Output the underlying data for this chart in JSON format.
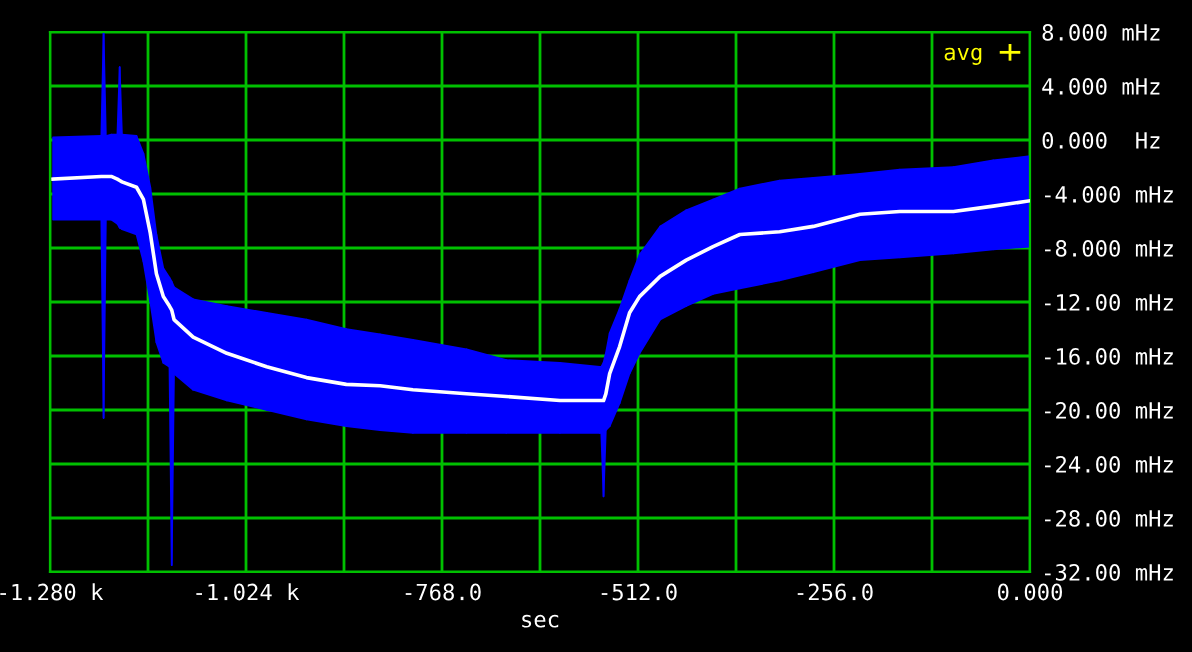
{
  "chart_data": {
    "type": "line",
    "xlabel": "sec",
    "x": [
      -1276,
      -1213,
      -1210,
      -1207,
      -1200,
      -1192,
      -1189,
      -1186,
      -1167,
      -1158,
      -1149,
      -1141,
      -1132,
      -1124,
      -1121,
      -1118,
      -1093,
      -1049,
      -997,
      -945,
      -893,
      -849,
      -806,
      -736,
      -684,
      -614,
      -562,
      -560,
      -557,
      -554,
      -549,
      -536,
      -523,
      -510,
      -483,
      -449,
      -414,
      -379,
      -327,
      -283,
      -222,
      -170,
      -100,
      -48,
      0
    ],
    "series": [
      {
        "name": "avg",
        "color": "#ffffff",
        "colors": [
          "#0000ff",
          "#0000ff",
          "#0000ff",
          "#0000ff",
          "#0000ff",
          "#0000ff",
          "#0000ff",
          "#0000ff",
          "#0000ff",
          "#0000ff",
          "#0000ff",
          "#0000ff",
          "#0000ff",
          "#0000ff",
          "#0000ff",
          "#0000ff",
          "#0000ff",
          "#0000ff",
          "#0000ff",
          "#0000ff",
          "#0000ff",
          "#0000ff",
          "#0000ff",
          "#0000ff",
          "#0000ff",
          "#0000ff",
          "#0000ff",
          "#0000ff",
          "#0000ff",
          "#0000ff",
          "#0000ff",
          "#0000ff",
          "#0000ff",
          "#0000ff",
          "#0000ff",
          "#0000ff",
          "#0000ff",
          "#0000ff",
          "#0000ff",
          "#0000ff",
          "#0000ff",
          "#0000ff",
          "#0000ff",
          "#0000ff",
          "#0000ff"
        ],
        "values": [
          -2.9,
          -2.7,
          -2.7,
          -2.7,
          -2.7,
          -2.9,
          -3.0,
          -3.1,
          -3.5,
          -4.4,
          -6.9,
          -9.9,
          -11.6,
          -12.3,
          -12.6,
          -13.3,
          -14.6,
          -15.8,
          -16.8,
          -17.6,
          -18.1,
          -18.2,
          -18.5,
          -18.8,
          -19.0,
          -19.3,
          -19.3,
          -19.3,
          -19.3,
          -18.8,
          -17.3,
          -15.3,
          -12.8,
          -11.6,
          -10.1,
          -8.9,
          -7.9,
          -7.0,
          -6.8,
          -6.4,
          -5.5,
          -5.3,
          -5.3,
          -4.9,
          -4.5
        ],
        "lower": [
          -5.9,
          -5.9,
          -20.6,
          -5.9,
          -5.9,
          -6.2,
          -6.5,
          -6.6,
          -7.0,
          -9.0,
          -12.0,
          -15.0,
          -16.5,
          -16.8,
          -31.5,
          -17.3,
          -18.5,
          -19.3,
          -20.0,
          -20.7,
          -21.2,
          -21.5,
          -21.7,
          -21.7,
          -21.7,
          -21.7,
          -21.7,
          -21.7,
          -26.4,
          -21.5,
          -21.2,
          -19.5,
          -17.3,
          -15.8,
          -13.3,
          -12.3,
          -11.4,
          -11.0,
          -10.4,
          -9.8,
          -8.9,
          -8.7,
          -8.4,
          -8.1,
          -7.9
        ],
        "upper": [
          0.2,
          0.3,
          8.0,
          0.3,
          0.4,
          0.4,
          5.4,
          0.4,
          0.3,
          -1.0,
          -3.5,
          -7.0,
          -9.5,
          -10.2,
          -10.5,
          -10.9,
          -11.8,
          -12.3,
          -12.8,
          -13.3,
          -14.0,
          -14.4,
          -14.8,
          -15.5,
          -16.3,
          -16.5,
          -16.8,
          -16.8,
          -16.5,
          -15.8,
          -14.3,
          -12.5,
          -10.4,
          -8.5,
          -6.4,
          -5.2,
          -4.4,
          -3.6,
          -3.0,
          -2.8,
          -2.5,
          -2.2,
          -2.0,
          -1.5,
          -1.2
        ]
      }
    ],
    "xlim": [
      -1280,
      0
    ],
    "xticks": [
      {
        "value": -1280,
        "label": "-1.280 k"
      },
      {
        "value": -1152,
        "label": null
      },
      {
        "value": -1024,
        "label": "-1.024 k"
      },
      {
        "value": -896,
        "label": null
      },
      {
        "value": -768,
        "label": "-768.0"
      },
      {
        "value": -640,
        "label": null
      },
      {
        "value": -512,
        "label": "-512.0"
      },
      {
        "value": -384,
        "label": null
      },
      {
        "value": -256,
        "label": "-256.0"
      },
      {
        "value": -128,
        "label": null
      },
      {
        "value": 0,
        "label": "0.000"
      }
    ],
    "ylim": [
      -32,
      8
    ],
    "yticks": [
      {
        "value": 8,
        "label": "8.000 mHz"
      },
      {
        "value": 4,
        "label": "4.000 mHz"
      },
      {
        "value": 0,
        "label": "0.000  Hz"
      },
      {
        "value": -4,
        "label": "-4.000 mHz"
      },
      {
        "value": -8,
        "label": "-8.000 mHz"
      },
      {
        "value": -12,
        "label": "-12.00 mHz"
      },
      {
        "value": -16,
        "label": "-16.00 mHz"
      },
      {
        "value": -20,
        "label": "-20.00 mHz"
      },
      {
        "value": -24,
        "label": "-24.00 mHz"
      },
      {
        "value": -28,
        "label": "-28.00 mHz"
      },
      {
        "value": -32,
        "label": "-32.00 mHz"
      }
    ],
    "grid": true,
    "legend": "top right",
    "marker": "none",
    "line_style": "solid"
  }
}
